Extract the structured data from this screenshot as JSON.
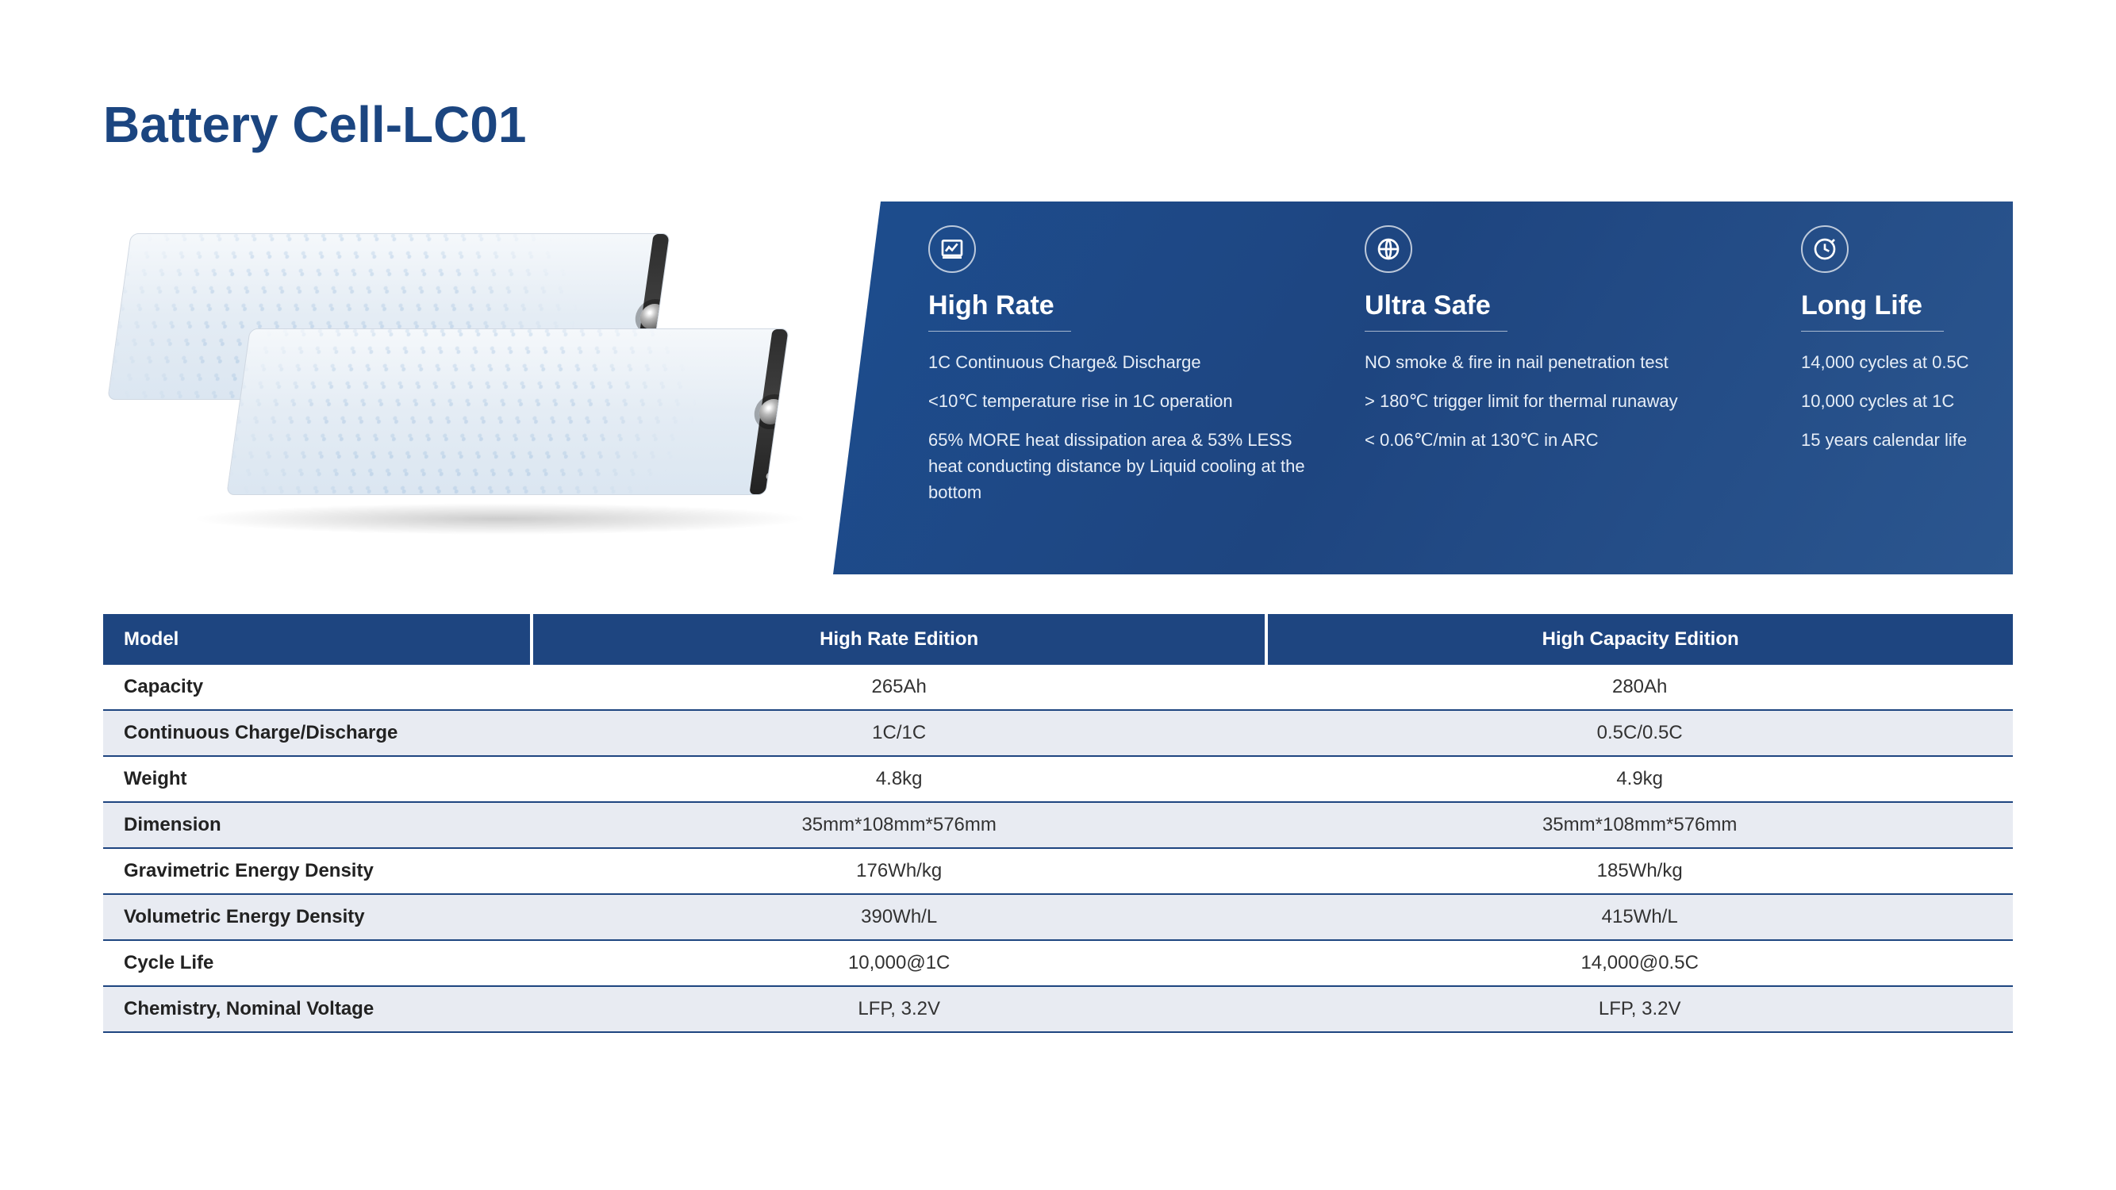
{
  "title": "Battery Cell-LC01",
  "features": [
    {
      "icon": "chart-icon",
      "title": "High Rate",
      "lines": [
        "1C Continuous Charge& Discharge",
        "<10℃ temperature rise in 1C operation",
        "65% MORE heat dissipation area & 53% LESS heat conducting distance by Liquid cooling at the bottom"
      ]
    },
    {
      "icon": "globe-icon",
      "title": "Ultra Safe",
      "lines": [
        "NO smoke & fire in nail penetration test",
        "> 180℃ trigger limit for thermal runaway",
        "< 0.06℃/min at 130℃ in ARC"
      ]
    },
    {
      "icon": "clock-icon",
      "title": "Long Life",
      "lines": [
        "14,000 cycles at 0.5C",
        "10,000 cycles at 1C",
        "15 years calendar life"
      ]
    }
  ],
  "table": {
    "headers": [
      "Model",
      "High Rate Edition",
      "High Capacity Edition"
    ],
    "rows": [
      [
        "Capacity",
        "265Ah",
        "280Ah"
      ],
      [
        "Continuous Charge/Discharge",
        "1C/1C",
        "0.5C/0.5C"
      ],
      [
        "Weight",
        "4.8kg",
        "4.9kg"
      ],
      [
        "Dimension",
        "35mm*108mm*576mm",
        "35mm*108mm*576mm"
      ],
      [
        "Gravimetric Energy Density",
        "176Wh/kg",
        "185Wh/kg"
      ],
      [
        "Volumetric Energy Density",
        "390Wh/L",
        "415Wh/L"
      ],
      [
        "Cycle Life",
        "10,000@1C",
        "14,000@0.5C"
      ],
      [
        "Chemistry, Nominal Voltage",
        "LFP, 3.2V",
        "LFP, 3.2V"
      ]
    ]
  },
  "colors": {
    "primary": "#1e4580",
    "row_alt": "#e8ebf2",
    "text": "#323232"
  }
}
